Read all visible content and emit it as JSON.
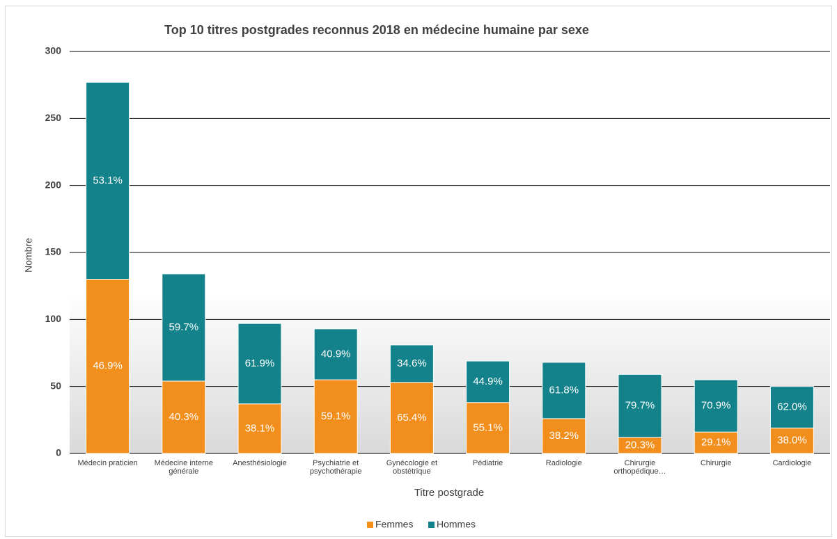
{
  "chart_data": {
    "type": "stacked_bar",
    "title": "Top 10 titres postgrades reconnus 2018 en médecine humaine par sexe",
    "x_label": "Titre postgrade",
    "y_label": "Nombre",
    "categories": [
      "Médecin praticien",
      "Médecine interne générale",
      "Anesthésiologie",
      "Psychiatrie et psychothérapie",
      "Gynécologie et obstétrique",
      "Pédiatrie",
      "Radiologie",
      "Chirurgie orthopédique…",
      "Chirurgie",
      "Cardiologie"
    ],
    "series": [
      {
        "name": "Femmes",
        "color": "#f28e1c",
        "values": [
          130,
          54,
          37,
          55,
          53,
          38,
          26,
          12,
          16,
          19
        ],
        "labels": [
          "46.9%",
          "40.3%",
          "38.1%",
          "59.1%",
          "65.4%",
          "55.1%",
          "38.2%",
          "20.3%",
          "29.1%",
          "38.0%"
        ]
      },
      {
        "name": "Hommes",
        "color": "#13828a",
        "values": [
          147,
          80,
          60,
          38,
          28,
          31,
          42,
          47,
          39,
          31
        ],
        "labels": [
          "53.1%",
          "59.7%",
          "61.9%",
          "40.9%",
          "34.6%",
          "44.9%",
          "61.8%",
          "79.7%",
          "70.9%",
          "62.0%"
        ]
      }
    ],
    "ylim": [
      0,
      300
    ],
    "yticks": [
      0,
      50,
      100,
      150,
      200,
      250,
      300
    ],
    "grid": true,
    "legend": "bottom"
  }
}
